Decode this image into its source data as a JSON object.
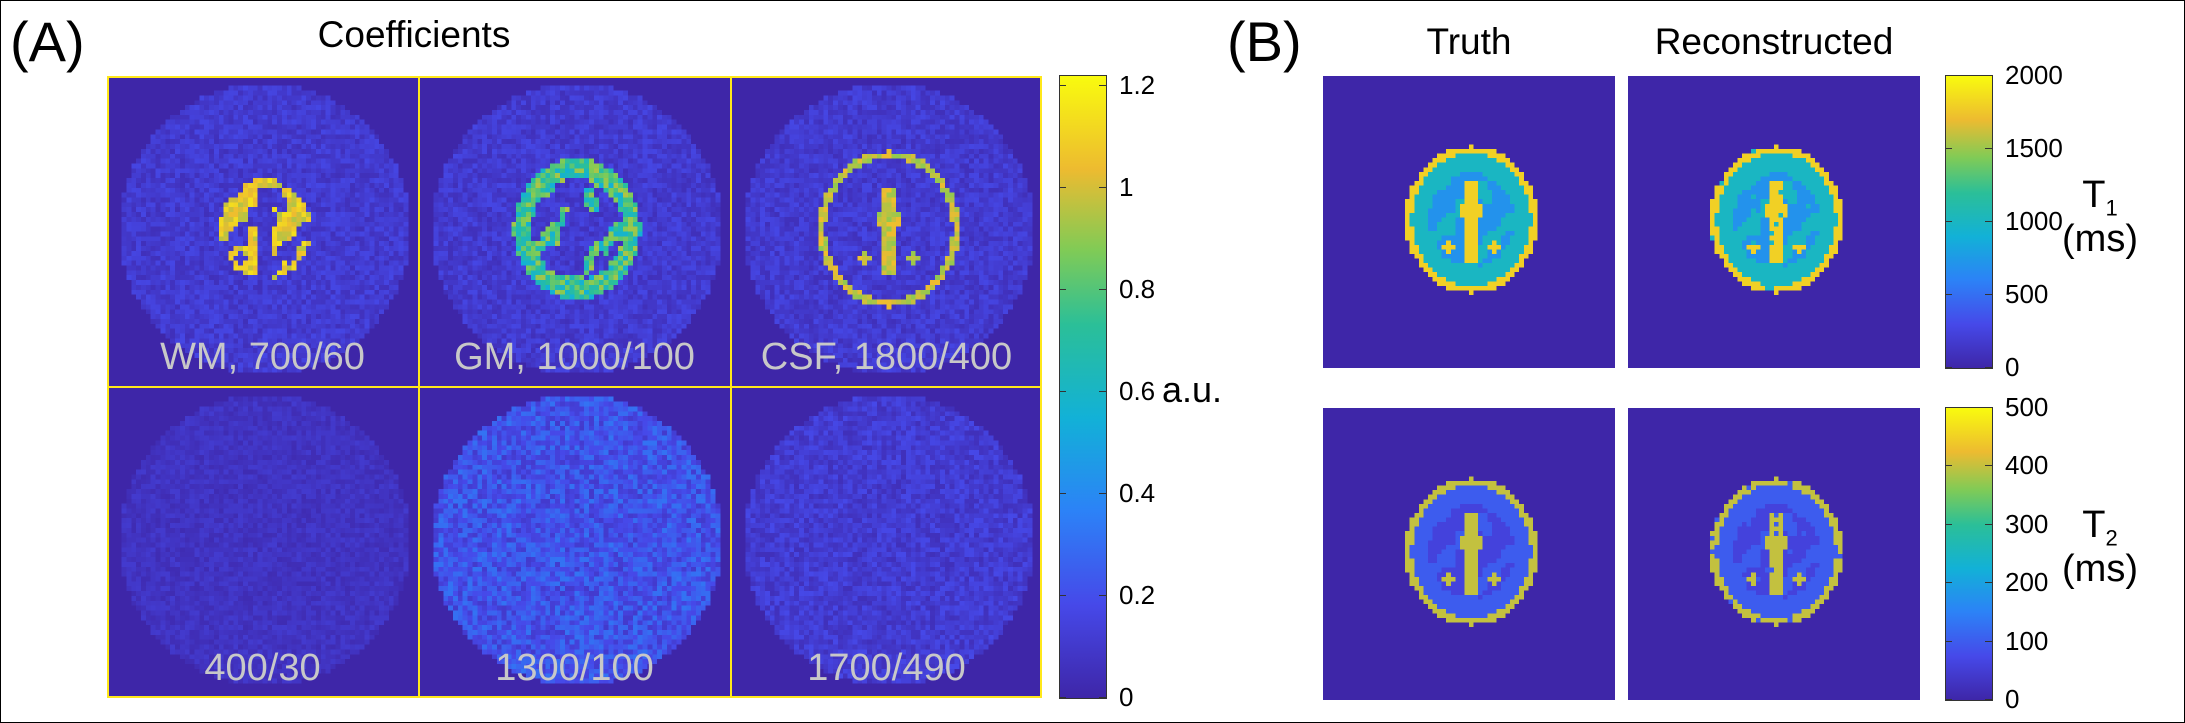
{
  "panel_a": {
    "letter": "(A)",
    "title": "Coefficients",
    "tiles": [
      {
        "label": "WM, 700/60",
        "pattern": "wm"
      },
      {
        "label": "GM, 1000/100",
        "pattern": "gm"
      },
      {
        "label": "CSF, 1800/400",
        "pattern": "csf"
      },
      {
        "label": "400/30",
        "pattern": "noise_low"
      },
      {
        "label": "1300/100",
        "pattern": "noise_mid"
      },
      {
        "label": "1700/490",
        "pattern": "noise_low2"
      }
    ],
    "colorbar": {
      "ticks": [
        "1.2",
        "1",
        "0.8",
        "0.6",
        "0.4",
        "0.2",
        "0"
      ],
      "tick_values": [
        1.2,
        1.0,
        0.8,
        0.6,
        0.4,
        0.2,
        0
      ],
      "range": [
        0,
        1.22
      ],
      "unit": "a.u."
    }
  },
  "panel_b": {
    "letter": "(B)",
    "col_titles": [
      "Truth",
      "Reconstructed"
    ],
    "t1": {
      "label_main": "T",
      "label_sub": "1",
      "label_unit": "(ms)",
      "ticks": [
        "2000",
        "1500",
        "1000",
        "500",
        "0"
      ],
      "tick_values": [
        2000,
        1500,
        1000,
        500,
        0
      ],
      "range": [
        0,
        2000
      ]
    },
    "t2": {
      "label_main": "T",
      "label_sub": "2",
      "label_unit": "(ms)",
      "ticks": [
        "500",
        "400",
        "300",
        "200",
        "100",
        "0"
      ],
      "tick_values": [
        500,
        400,
        300,
        200,
        100,
        0
      ],
      "range": [
        0,
        500
      ]
    }
  },
  "colors": {
    "background_map": "#3e2aa6",
    "grid_line": "#ffe81a",
    "tile_label": "#c8c8c8",
    "colormap": "parula"
  }
}
